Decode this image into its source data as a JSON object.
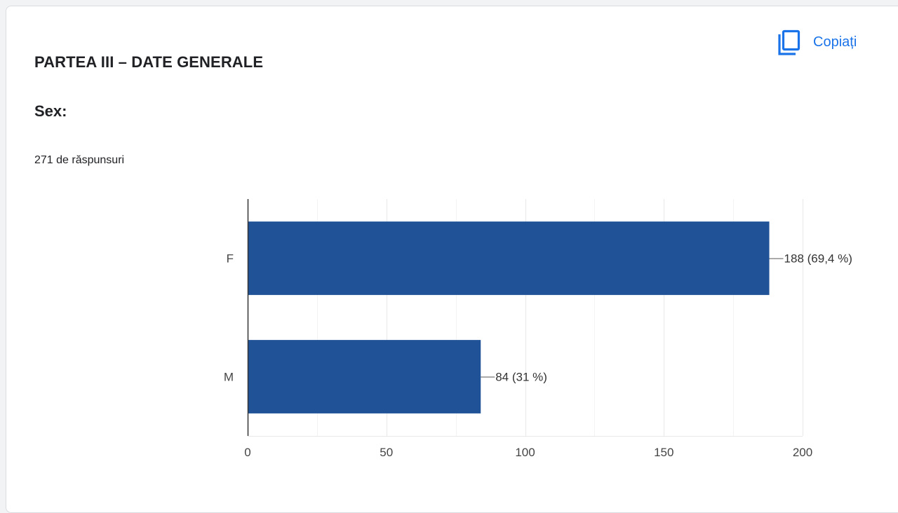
{
  "section": {
    "title": "PARTEA III – DATE GENERALE"
  },
  "question": {
    "title": "Sex:",
    "response_count": "271 de răspunsuri"
  },
  "toolbar": {
    "copy_label": "Copiați",
    "copy_icon": "copy-icon"
  },
  "colors": {
    "bar": "#1f5297",
    "accent": "#1a73e8",
    "grid": "#e8e8e8"
  },
  "chart_data": {
    "type": "bar",
    "orientation": "horizontal",
    "categories": [
      "F",
      "M"
    ],
    "values": [
      188,
      84
    ],
    "data_labels": [
      "188 (69,4 %)",
      "84 (31 %)"
    ],
    "xlim": [
      0,
      200
    ],
    "xticks": [
      0,
      50,
      100,
      150,
      200
    ],
    "xtick_labels": [
      "0",
      "50",
      "100",
      "150",
      "200"
    ],
    "grid": true,
    "title": "",
    "xlabel": "",
    "ylabel": ""
  }
}
